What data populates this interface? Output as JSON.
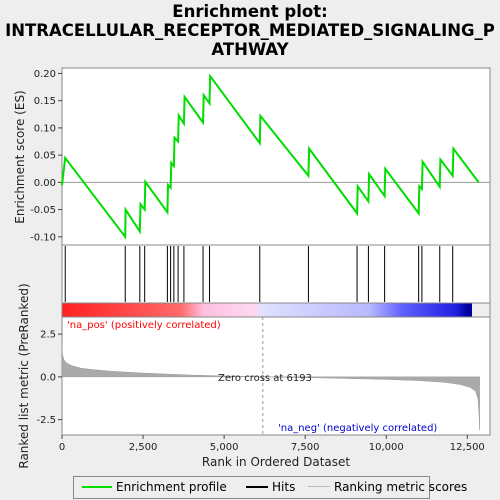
{
  "title_lines": [
    "Enrichment plot:",
    "INTRACELLULAR_RECEPTOR_MEDIATED_SIGNALING_P",
    "ATHWAY"
  ],
  "colors": {
    "es_line": "#00dd00",
    "hits": "#000000",
    "metric_fill": "#aaaaaa",
    "pos_label": "#ff0000",
    "neg_label": "#0000cc",
    "zero_line": "#999999"
  },
  "chart_data": [
    {
      "type": "line",
      "name": "enrichment_profile",
      "ylabel": "Enrichment score (ES)",
      "ylim": [
        -0.115,
        0.21
      ],
      "yticks": [
        -0.1,
        -0.05,
        0.0,
        0.05,
        0.1,
        0.15,
        0.2
      ],
      "ytick_labels": [
        "-0.10",
        "-0.05",
        "0.00",
        "0.05",
        "0.10",
        "0.15",
        "0.20"
      ],
      "x": [
        0,
        100,
        1950,
        1960,
        2400,
        2420,
        2550,
        2570,
        3250,
        3270,
        3350,
        3370,
        3450,
        3470,
        3580,
        3600,
        3760,
        3780,
        4350,
        4370,
        4550,
        4570,
        6100,
        6120,
        7600,
        7620,
        9100,
        9120,
        9450,
        9470,
        9950,
        9970,
        11000,
        11020,
        11100,
        11120,
        11650,
        11670,
        12050,
        12070,
        12850
      ],
      "y": [
        -0.005,
        0.045,
        -0.1,
        -0.05,
        -0.09,
        -0.04,
        -0.05,
        0.001,
        -0.055,
        -0.005,
        -0.01,
        0.036,
        0.03,
        0.082,
        0.075,
        0.123,
        0.108,
        0.157,
        0.11,
        0.16,
        0.145,
        0.195,
        0.072,
        0.122,
        0.012,
        0.062,
        -0.057,
        -0.007,
        -0.035,
        0.015,
        -0.025,
        0.025,
        -0.057,
        -0.007,
        -0.012,
        0.038,
        -0.008,
        0.042,
        0.012,
        0.062,
        0.0
      ]
    },
    {
      "type": "hits",
      "name": "hits",
      "x": [
        100,
        1950,
        2400,
        2550,
        3250,
        3350,
        3450,
        3580,
        3760,
        4350,
        4550,
        6100,
        7600,
        9100,
        9450,
        9950,
        11000,
        11100,
        11650,
        12050
      ]
    },
    {
      "type": "area",
      "name": "ranking_metric_scores",
      "xlabel": "Rank in Ordered Dataset",
      "ylabel": "Ranked list metric (PreRanked)",
      "xlim": [
        0,
        13200
      ],
      "xticks": [
        0,
        2500,
        5000,
        7500,
        10000,
        12500
      ],
      "xtick_labels": [
        "0",
        "2,500",
        "5,000",
        "7,500",
        "10,000",
        "12,500"
      ],
      "ylim": [
        -3.4,
        3.5
      ],
      "yticks": [
        -2.5,
        0.0,
        2.5
      ],
      "ytick_labels": [
        "-2.5",
        "0.0",
        "2.5"
      ],
      "x": [
        0,
        20,
        60,
        150,
        300,
        600,
        1000,
        1500,
        2500,
        4000,
        6193,
        8000,
        10000,
        11000,
        11800,
        12300,
        12600,
        12760,
        12830,
        12860,
        12880
      ],
      "y": [
        1.75,
        1.3,
        1.0,
        0.8,
        0.65,
        0.5,
        0.42,
        0.33,
        0.22,
        0.1,
        0.0,
        -0.06,
        -0.15,
        -0.22,
        -0.32,
        -0.45,
        -0.62,
        -0.85,
        -1.3,
        -2.2,
        -3.1
      ]
    }
  ],
  "annotations": {
    "zero_cross": "Zero cross at 6193",
    "na_pos": "'na_pos' (positively correlated)",
    "na_neg": "'na_neg' (negatively correlated)"
  },
  "legend": {
    "items": [
      "Enrichment profile",
      "Hits",
      "Ranking metric scores"
    ]
  }
}
